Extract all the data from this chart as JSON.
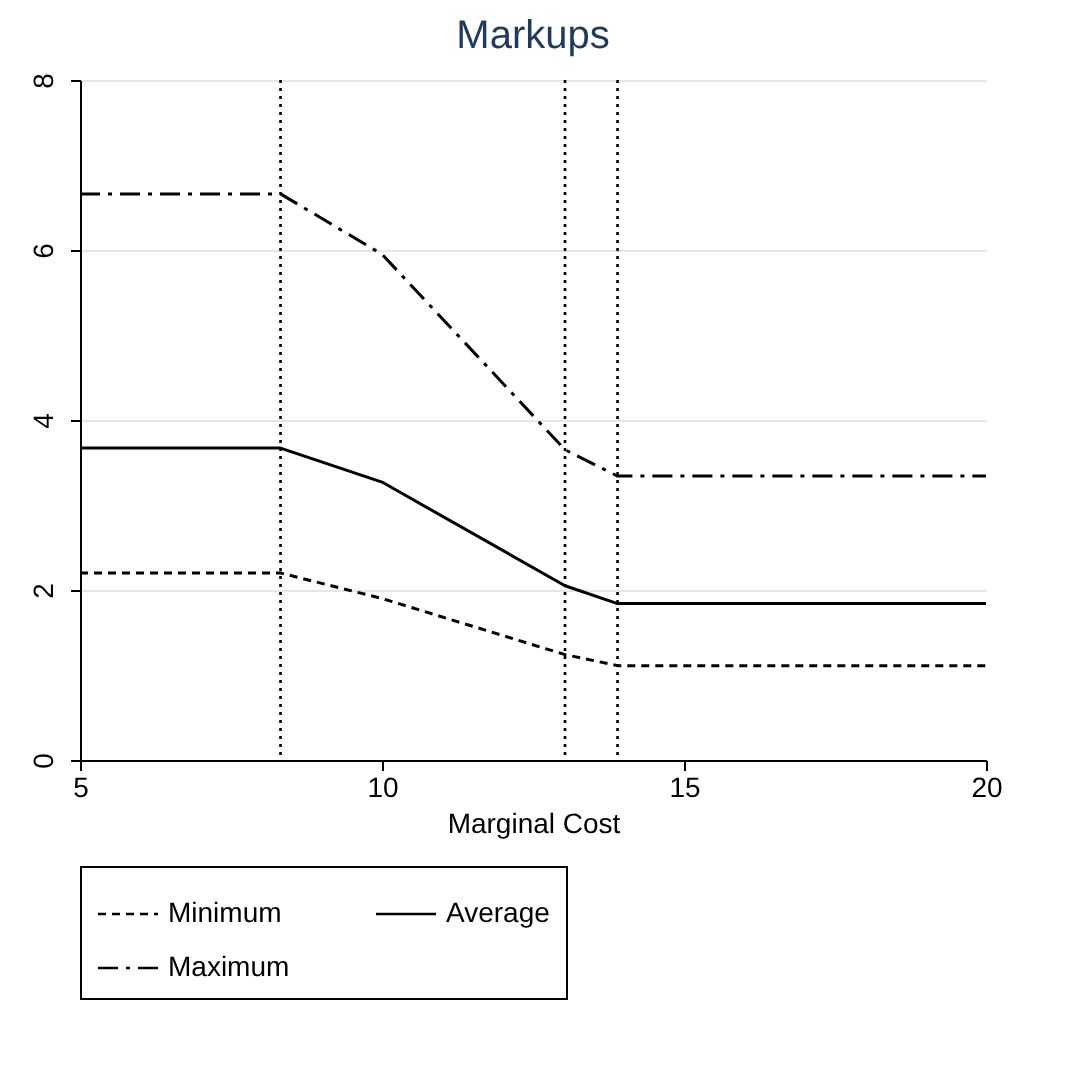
{
  "chart_data": {
    "type": "line",
    "title": "Markups",
    "xlabel": "Marginal Cost",
    "x": [
      5,
      8.32,
      10,
      13.03,
      13.9,
      20
    ],
    "series": [
      {
        "name": "Minimum",
        "color": "#000000",
        "line_style": "dashed",
        "values": [
          2.2,
          2.2,
          1.9,
          1.24,
          1.11,
          1.11
        ]
      },
      {
        "name": "Average",
        "color": "#000000",
        "line_style": "solid",
        "values": [
          3.67,
          3.67,
          3.27,
          2.05,
          1.84,
          1.84
        ]
      },
      {
        "name": "Maximum",
        "color": "#000000",
        "line_style": "dashdot",
        "values": [
          6.66,
          6.66,
          5.95,
          3.65,
          3.34,
          3.34
        ]
      }
    ],
    "xlim": [
      5,
      20
    ],
    "xticks": [
      5,
      10,
      15,
      20
    ],
    "ylim": [
      0,
      8
    ],
    "yticks": [
      0,
      2,
      4,
      6,
      8
    ],
    "ref_lines": [
      {
        "axis": "x",
        "value": 8.32,
        "line_style": "dotted"
      },
      {
        "axis": "x",
        "value": 13.03,
        "line_style": "dotted"
      },
      {
        "axis": "x",
        "value": 13.9,
        "line_style": "dotted"
      }
    ],
    "grid": "y",
    "legend": "bottom"
  }
}
